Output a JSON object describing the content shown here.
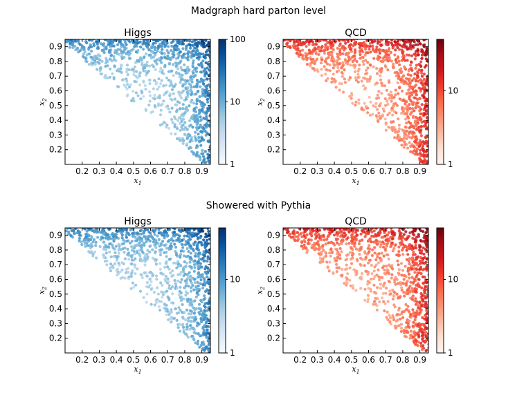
{
  "sections": [
    {
      "title": "Madgraph hard parton level"
    },
    {
      "title": "Showered with Pythia"
    }
  ],
  "chart_data": [
    {
      "type": "scatter",
      "title": "Higgs",
      "section": "Madgraph hard parton level",
      "xlabel": "x_1",
      "ylabel": "x_2",
      "xlim": [
        0.1,
        0.95
      ],
      "ylim": [
        0.1,
        0.95
      ],
      "xticks": [
        0.2,
        0.3,
        0.4,
        0.5,
        0.6,
        0.7,
        0.8,
        0.9
      ],
      "yticks": [
        0.2,
        0.3,
        0.4,
        0.5,
        0.6,
        0.7,
        0.8,
        0.9
      ],
      "colorscale": "Blues",
      "colorscale_log": true,
      "color_range": [
        1,
        100
      ],
      "colorbar_ticks": [
        {
          "value": 1,
          "label": "1"
        },
        {
          "value": 10,
          "label": "10"
        },
        {
          "value": 100,
          "label": "100"
        }
      ],
      "description_of_density": "events fill region x1 + x2 > 1; density highest near x1≈0.95 and x2≈0.95",
      "seed": 11
    },
    {
      "type": "scatter",
      "title": "QCD",
      "section": "Madgraph hard parton level",
      "xlabel": "x_1",
      "ylabel": "x_2",
      "xlim": [
        0.1,
        0.95
      ],
      "ylim": [
        0.1,
        0.95
      ],
      "xticks": [
        0.2,
        0.3,
        0.4,
        0.5,
        0.6,
        0.7,
        0.8,
        0.9
      ],
      "yticks": [
        0.2,
        0.3,
        0.4,
        0.5,
        0.6,
        0.7,
        0.8,
        0.9
      ],
      "colorscale": "Reds",
      "colorscale_log": true,
      "color_range": [
        1,
        50
      ],
      "colorbar_ticks": [
        {
          "value": 1,
          "label": "1"
        },
        {
          "value": 10,
          "label": "10"
        }
      ],
      "seed": 23
    },
    {
      "type": "scatter",
      "title": "Higgs",
      "section": "Showered with Pythia",
      "xlabel": "x_1",
      "ylabel": "x_2",
      "xlim": [
        0.1,
        0.95
      ],
      "ylim": [
        0.1,
        0.95
      ],
      "xticks": [
        0.2,
        0.3,
        0.4,
        0.5,
        0.6,
        0.7,
        0.8,
        0.9
      ],
      "yticks": [
        0.2,
        0.3,
        0.4,
        0.5,
        0.6,
        0.7,
        0.8,
        0.9
      ],
      "colorscale": "Blues",
      "colorscale_log": true,
      "color_range": [
        1,
        50
      ],
      "colorbar_ticks": [
        {
          "value": 1,
          "label": "1"
        },
        {
          "value": 10,
          "label": "10"
        }
      ],
      "seed": 37
    },
    {
      "type": "scatter",
      "title": "QCD",
      "section": "Showered with Pythia",
      "xlabel": "x_1",
      "ylabel": "x_2",
      "xlim": [
        0.1,
        0.95
      ],
      "ylim": [
        0.1,
        0.95
      ],
      "xticks": [
        0.2,
        0.3,
        0.4,
        0.5,
        0.6,
        0.7,
        0.8,
        0.9
      ],
      "yticks": [
        0.2,
        0.3,
        0.4,
        0.5,
        0.6,
        0.7,
        0.8,
        0.9
      ],
      "colorscale": "Reds",
      "colorscale_log": true,
      "color_range": [
        1,
        50
      ],
      "colorbar_ticks": [
        {
          "value": 1,
          "label": "1"
        },
        {
          "value": 10,
          "label": "10"
        }
      ],
      "seed": 51
    }
  ]
}
